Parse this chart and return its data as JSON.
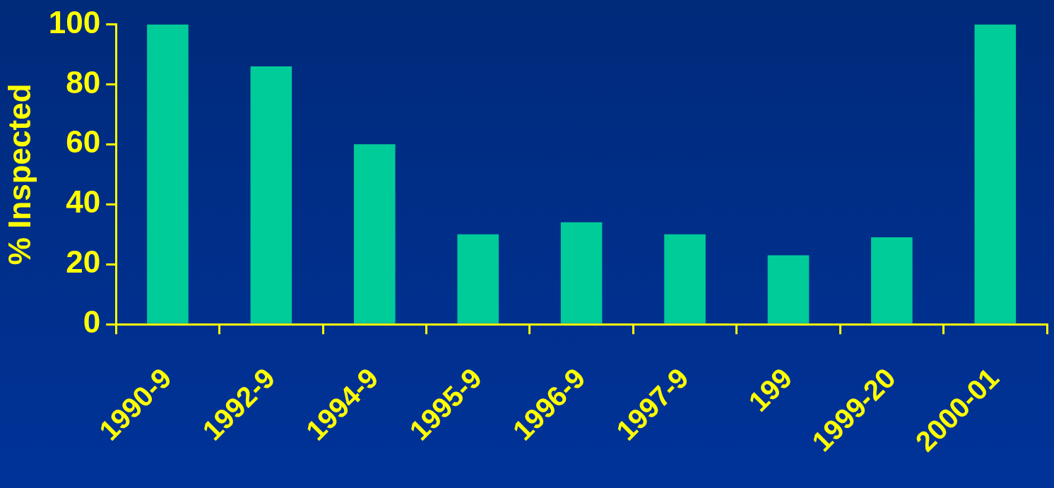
{
  "chart_data": {
    "type": "bar",
    "ylabel": "% Inspected",
    "categories": [
      "1990-9",
      "1992-9",
      "1994-9",
      "1995-9",
      "1996-9",
      "1997-9",
      "199",
      "1999-20",
      "2000-01"
    ],
    "values": [
      100,
      86,
      60,
      30,
      34,
      30,
      23,
      29,
      100
    ],
    "color": "#00cc99",
    "ylim": [
      0,
      100
    ],
    "yticks": [
      0,
      20,
      40,
      60,
      80,
      100
    ],
    "grid": false,
    "legend": false
  }
}
